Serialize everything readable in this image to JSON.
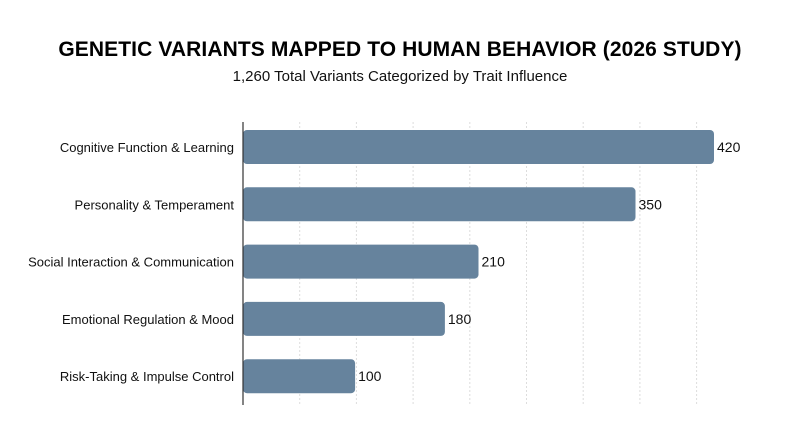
{
  "chart_data": {
    "type": "bar",
    "orientation": "horizontal",
    "title": "GENETIC VARIANTS MAPPED TO HUMAN BEHAVIOR (2026 STUDY)",
    "subtitle": "1,260 Total Variants Categorized by Trait Influence",
    "xlabel": "",
    "ylabel": "",
    "categories": [
      "Cognitive Function & Learning",
      "Personality & Temperament",
      "Social Interaction & Communication",
      "Emotional Regulation & Mood",
      "Risk-Taking & Impulse Control"
    ],
    "values": [
      420,
      350,
      210,
      180,
      100
    ],
    "xlim": [
      0,
      450
    ],
    "grid": true,
    "grid_style": "vertical dashed",
    "bar_color": "#66839d",
    "legend": "none"
  }
}
